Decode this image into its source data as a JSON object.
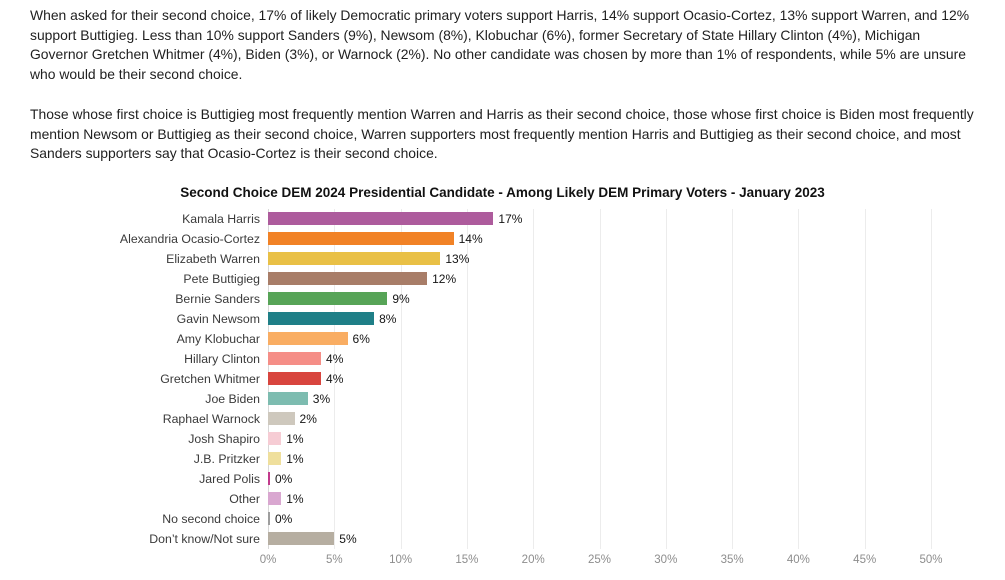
{
  "document": {
    "paragraphs": [
      "When asked for their second choice, 17% of likely Democratic primary voters support Harris, 14% support Ocasio-Cortez, 13% support Warren, and 12% support Buttigieg. Less than 10% support Sanders (9%), Newsom (8%), Klobuchar (6%), former Secretary of State Hillary Clinton (4%), Michigan Governor Gretchen Whitmer (4%), Biden (3%), or Warnock (2%). No other candidate was chosen by more than 1% of respondents, while 5% are unsure who would be their second choice.",
      "Those whose first choice is Buttigieg most frequently mention Warren and Harris as their second choice, those whose first choice is Biden most frequently mention Newsom or Buttigieg as their second choice, Warren supporters most frequently mention Harris and Buttigieg as their second choice, and most Sanders supporters say that Ocasio-Cortez is their second choice."
    ]
  },
  "chart_data": {
    "type": "bar",
    "orientation": "horizontal",
    "title": "Second Choice DEM 2024 Presidential Candidate - Among Likely DEM Primary Voters - January 2023",
    "categories": [
      "Kamala Harris",
      "Alexandria Ocasio-Cortez",
      "Elizabeth Warren",
      "Pete Buttigieg",
      "Bernie Sanders",
      "Gavin Newsom",
      "Amy Klobuchar",
      "Hillary Clinton",
      "Gretchen Whitmer",
      "Joe Biden",
      "Raphael Warnock",
      "Josh Shapiro",
      "J.B. Pritzker",
      "Jared Polis",
      "Other",
      "No second choice",
      "Don’t know/Not sure"
    ],
    "values": [
      17,
      14,
      13,
      12,
      9,
      8,
      6,
      4,
      4,
      3,
      2,
      1,
      1,
      0,
      1,
      0,
      5
    ],
    "value_labels": [
      "17%",
      "14%",
      "13%",
      "12%",
      "9%",
      "8%",
      "6%",
      "4%",
      "4%",
      "3%",
      "2%",
      "1%",
      "1%",
      "0%",
      "1%",
      "0%",
      "5%"
    ],
    "colors": [
      "#ad5b9c",
      "#f18226",
      "#e9c046",
      "#a87d68",
      "#57a457",
      "#1f7f87",
      "#f9ad63",
      "#f58e87",
      "#d8453e",
      "#7dbcb0",
      "#cec8bd",
      "#f6ccd4",
      "#efdf9c",
      "#c23a8c",
      "#d9a7d0",
      "#9e9e9e",
      "#b6aea1"
    ],
    "xlim": [
      0,
      50
    ],
    "x_ticks": [
      "0%",
      "5%",
      "10%",
      "15%",
      "20%",
      "25%",
      "30%",
      "35%",
      "40%",
      "45%",
      "50%"
    ],
    "grid": "vertical",
    "xlabel": "",
    "ylabel": ""
  }
}
